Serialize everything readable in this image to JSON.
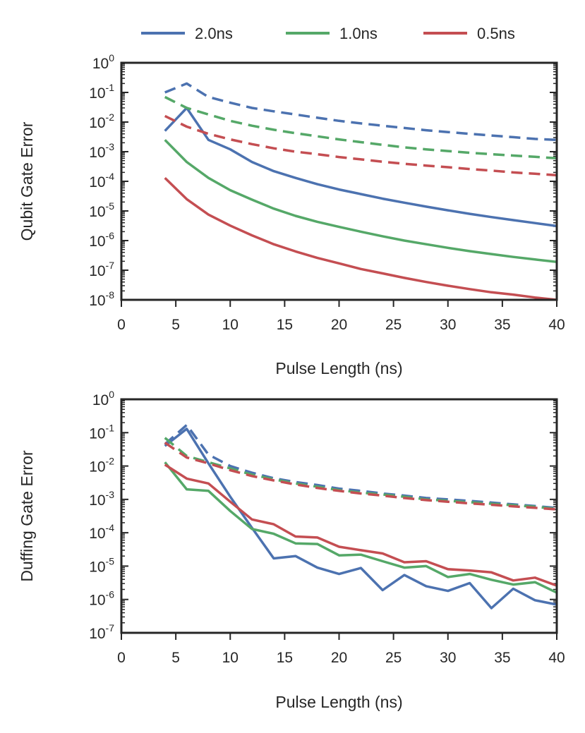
{
  "legend": [
    {
      "label": "2.0ns",
      "color": "#4c72b0"
    },
    {
      "label": "1.0ns",
      "color": "#55a868"
    },
    {
      "label": "0.5ns",
      "color": "#c44e52"
    }
  ],
  "chart_data": [
    {
      "type": "line",
      "xlabel": "Pulse Length (ns)",
      "ylabel": "Qubit Gate Error",
      "xlim": [
        0,
        40
      ],
      "ylim": [
        1e-08,
        1
      ],
      "yscale": "log",
      "xticks": [
        "0",
        "5",
        "10",
        "15",
        "20",
        "25",
        "30",
        "35",
        "40"
      ],
      "yticks": [
        {
          "base": "10",
          "exp": "-8"
        },
        {
          "base": "10",
          "exp": "-7"
        },
        {
          "base": "10",
          "exp": "-6"
        },
        {
          "base": "10",
          "exp": "-5"
        },
        {
          "base": "10",
          "exp": "-4"
        },
        {
          "base": "10",
          "exp": "-3"
        },
        {
          "base": "10",
          "exp": "-2"
        },
        {
          "base": "10",
          "exp": "-1"
        },
        {
          "base": "10",
          "exp": "0"
        }
      ],
      "series": [
        {
          "name": "2.0ns",
          "style": "solid",
          "x": [
            4,
            6,
            8,
            10,
            12,
            14,
            16,
            18,
            20,
            22,
            24,
            26,
            28,
            30,
            32,
            34,
            36,
            38,
            40
          ],
          "values": [
            0.005,
            0.03,
            0.0025,
            0.0012,
            0.00045,
            0.00022,
            0.00013,
            8e-05,
            5.3e-05,
            3.7e-05,
            2.6e-05,
            1.9e-05,
            1.4e-05,
            1.05e-05,
            8e-06,
            6.2e-06,
            4.9e-06,
            3.9e-06,
            3.1e-06
          ]
        },
        {
          "name": "1.0ns",
          "style": "solid",
          "x": [
            4,
            6,
            8,
            10,
            12,
            14,
            16,
            18,
            20,
            22,
            24,
            26,
            28,
            30,
            32,
            34,
            36,
            38,
            40
          ],
          "values": [
            0.0025,
            0.00045,
            0.00013,
            5e-05,
            2.4e-05,
            1.2e-05,
            6.8e-06,
            4.3e-06,
            2.9e-06,
            2e-06,
            1.4e-06,
            1e-06,
            7.5e-07,
            5.7e-07,
            4.4e-07,
            3.5e-07,
            2.8e-07,
            2.3e-07,
            1.9e-07
          ]
        },
        {
          "name": "0.5ns",
          "style": "solid",
          "x": [
            4,
            6,
            8,
            10,
            12,
            14,
            16,
            18,
            20,
            22,
            24,
            26,
            28,
            30,
            32,
            34,
            36,
            38,
            40
          ],
          "values": [
            0.00013,
            2.5e-05,
            7.5e-06,
            3.2e-06,
            1.5e-06,
            7.5e-07,
            4.3e-07,
            2.6e-07,
            1.7e-07,
            1.1e-07,
            7.8e-08,
            5.5e-08,
            4e-08,
            3e-08,
            2.3e-08,
            1.8e-08,
            1.5e-08,
            1.2e-08,
            1e-08
          ]
        },
        {
          "name": "2.0ns",
          "style": "dashed",
          "x": [
            4,
            6,
            8,
            10,
            12,
            14,
            16,
            18,
            20,
            22,
            24,
            26,
            28,
            30,
            32,
            34,
            36,
            38,
            40
          ],
          "values": [
            0.1,
            0.2,
            0.07,
            0.045,
            0.03,
            0.023,
            0.018,
            0.014,
            0.011,
            0.009,
            0.0075,
            0.0063,
            0.0053,
            0.0046,
            0.004,
            0.0035,
            0.0031,
            0.0027,
            0.0025
          ]
        },
        {
          "name": "1.0ns",
          "style": "dashed",
          "x": [
            4,
            6,
            8,
            10,
            12,
            14,
            16,
            18,
            20,
            22,
            24,
            26,
            28,
            30,
            32,
            34,
            36,
            38,
            40
          ],
          "values": [
            0.07,
            0.03,
            0.018,
            0.011,
            0.0075,
            0.0055,
            0.0042,
            0.0033,
            0.0026,
            0.0021,
            0.0017,
            0.0014,
            0.0012,
            0.00105,
            0.00092,
            0.00082,
            0.00074,
            0.00067,
            0.0006
          ]
        },
        {
          "name": "0.5ns",
          "style": "dashed",
          "x": [
            4,
            6,
            8,
            10,
            12,
            14,
            16,
            18,
            20,
            22,
            24,
            26,
            28,
            30,
            32,
            34,
            36,
            38,
            40
          ],
          "values": [
            0.016,
            0.007,
            0.004,
            0.0026,
            0.0018,
            0.0013,
            0.001,
            0.00082,
            0.00066,
            0.00055,
            0.00046,
            0.00039,
            0.00034,
            0.0003,
            0.00026,
            0.00023,
            0.0002,
            0.00018,
            0.00016
          ]
        }
      ]
    },
    {
      "type": "line",
      "xlabel": "Pulse Length (ns)",
      "ylabel": "Duffing Gate Error",
      "xlim": [
        0,
        40
      ],
      "ylim": [
        1e-07,
        1
      ],
      "yscale": "log",
      "xticks": [
        "0",
        "5",
        "10",
        "15",
        "20",
        "25",
        "30",
        "35",
        "40"
      ],
      "yticks": [
        {
          "base": "10",
          "exp": "-7"
        },
        {
          "base": "10",
          "exp": "-6"
        },
        {
          "base": "10",
          "exp": "-5"
        },
        {
          "base": "10",
          "exp": "-4"
        },
        {
          "base": "10",
          "exp": "-3"
        },
        {
          "base": "10",
          "exp": "-2"
        },
        {
          "base": "10",
          "exp": "-1"
        },
        {
          "base": "10",
          "exp": "0"
        }
      ],
      "series": [
        {
          "name": "2.0ns",
          "style": "solid",
          "x": [
            4,
            6,
            8,
            10,
            12,
            14,
            16,
            18,
            20,
            22,
            24,
            26,
            28,
            30,
            32,
            34,
            36,
            38,
            40
          ],
          "values": [
            0.04,
            0.13,
            0.012,
            0.0012,
            0.00014,
            1.7e-05,
            2e-05,
            9e-06,
            5.8e-06,
            8.8e-06,
            1.9e-06,
            5.4e-06,
            2.5e-06,
            1.8e-06,
            3.1e-06,
            5.5e-07,
            2.1e-06,
            9.5e-07,
            7e-07
          ]
        },
        {
          "name": "1.0ns",
          "style": "solid",
          "x": [
            4,
            6,
            8,
            10,
            12,
            14,
            16,
            18,
            20,
            22,
            24,
            26,
            28,
            30,
            32,
            34,
            36,
            38,
            40
          ],
          "values": [
            0.013,
            0.002,
            0.0018,
            0.00045,
            0.00013,
            9.3e-05,
            4.8e-05,
            4.6e-05,
            2.1e-05,
            2.2e-05,
            1.4e-05,
            9e-06,
            1e-05,
            4.7e-06,
            5.8e-06,
            3.9e-06,
            2.8e-06,
            3.3e-06,
            1.6e-06
          ]
        },
        {
          "name": "0.5ns",
          "style": "solid",
          "x": [
            4,
            6,
            8,
            10,
            12,
            14,
            16,
            18,
            20,
            22,
            24,
            26,
            28,
            30,
            32,
            34,
            36,
            38,
            40
          ],
          "values": [
            0.011,
            0.0042,
            0.003,
            0.00085,
            0.00025,
            0.00018,
            7.7e-05,
            7.2e-05,
            3.8e-05,
            3e-05,
            2.4e-05,
            1.3e-05,
            1.4e-05,
            8.1e-06,
            7.4e-06,
            6.5e-06,
            3.7e-06,
            4.5e-06,
            2.6e-06
          ]
        },
        {
          "name": "2.0ns",
          "style": "dashed",
          "x": [
            4,
            6,
            8,
            10,
            12,
            14,
            16,
            18,
            20,
            22,
            24,
            26,
            28,
            30,
            32,
            34,
            36,
            38,
            40
          ],
          "values": [
            0.045,
            0.17,
            0.022,
            0.01,
            0.0063,
            0.0043,
            0.0033,
            0.0027,
            0.0021,
            0.0018,
            0.0015,
            0.0013,
            0.0011,
            0.001,
            0.0009,
            0.0008,
            0.00071,
            0.00063,
            0.00055
          ]
        },
        {
          "name": "1.0ns",
          "style": "dashed",
          "x": [
            4,
            6,
            8,
            10,
            12,
            14,
            16,
            18,
            20,
            22,
            24,
            26,
            28,
            30,
            32,
            34,
            36,
            38,
            40
          ],
          "values": [
            0.07,
            0.02,
            0.013,
            0.0085,
            0.0055,
            0.004,
            0.003,
            0.0024,
            0.0019,
            0.0016,
            0.0014,
            0.0012,
            0.001,
            0.00091,
            0.00082,
            0.00074,
            0.00067,
            0.0006,
            0.00052
          ]
        },
        {
          "name": "0.5ns",
          "style": "dashed",
          "x": [
            4,
            6,
            8,
            10,
            12,
            14,
            16,
            18,
            20,
            22,
            24,
            26,
            28,
            30,
            32,
            34,
            36,
            38,
            40
          ],
          "values": [
            0.05,
            0.018,
            0.012,
            0.0075,
            0.005,
            0.0037,
            0.0028,
            0.0022,
            0.0018,
            0.0015,
            0.0013,
            0.0011,
            0.00095,
            0.00085,
            0.00076,
            0.00069,
            0.00062,
            0.00056,
            0.0005
          ]
        }
      ]
    }
  ]
}
